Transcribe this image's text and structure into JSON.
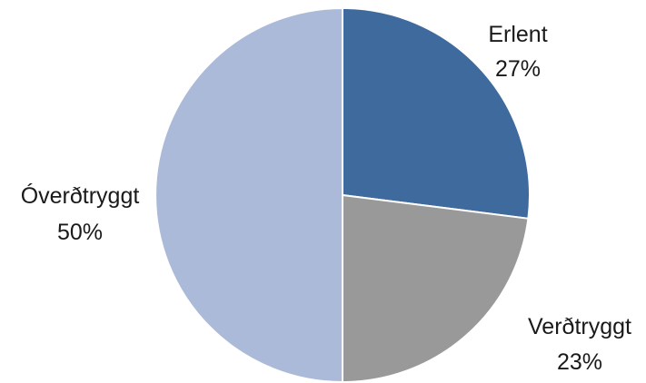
{
  "chart_data": {
    "type": "pie",
    "title": "",
    "legend": "none",
    "slices": [
      {
        "label": "Erlent",
        "value": 27,
        "value_label": "27%",
        "color": "#3e6a9e"
      },
      {
        "label": "Verðtryggt",
        "value": 23,
        "value_label": "23%",
        "color": "#999999"
      },
      {
        "label": "Óverðtryggt",
        "value": 50,
        "value_label": "50%",
        "color": "#abbad8"
      }
    ]
  }
}
